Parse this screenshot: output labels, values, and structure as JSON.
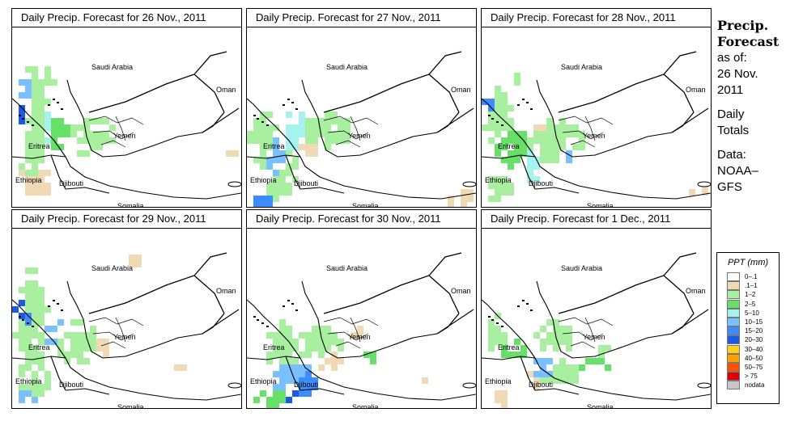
{
  "panels": [
    {
      "title": "Daily Precip. Forecast for  26 Nov., 2011",
      "date": "26 Nov., 2011"
    },
    {
      "title": "Daily Precip. Forecast for  27 Nov., 2011",
      "date": "27 Nov., 2011"
    },
    {
      "title": "Daily Precip. Forecast for  28 Nov., 2011",
      "date": "28 Nov., 2011"
    },
    {
      "title": "Daily Precip. Forecast for  29 Nov., 2011",
      "date": "29 Nov., 2011"
    },
    {
      "title": "Daily Precip. Forecast for  30 Nov., 2011",
      "date": "30 Nov., 2011"
    },
    {
      "title": "Daily Precip. Forecast for  1 Dec., 2011",
      "date": "1 Dec., 2011"
    }
  ],
  "map_labels": {
    "saudi_arabia": "Saudi Arabia",
    "oman": "Oman",
    "yemen": "Yemen",
    "eritrea": "Eritrea",
    "ethiopia": "Ethiopia",
    "djibouti": "Djibouti",
    "somalia": "Somalia"
  },
  "side_info": {
    "title_line1": "Precip.",
    "title_line2": "Forecast",
    "asof_line1": "as of:",
    "asof_line2": "26 Nov.",
    "asof_line3": "2011",
    "totals_line1": "Daily",
    "totals_line2": "Totals",
    "data_line1": "Data:",
    "data_line2": "NOAA–",
    "data_line3": "GFS"
  },
  "legend": {
    "title": "PPT (mm)",
    "items": [
      {
        "label": "0–.1",
        "color": "#ffffff"
      },
      {
        "label": ".1–1",
        "color": "#f0d9b5"
      },
      {
        "label": "1–2",
        "color": "#a8f0a0"
      },
      {
        "label": "2–5",
        "color": "#66e066"
      },
      {
        "label": "5–10",
        "color": "#a6f2ee"
      },
      {
        "label": "10–15",
        "color": "#78c0ff"
      },
      {
        "label": "15–20",
        "color": "#3c8cff"
      },
      {
        "label": "20–30",
        "color": "#1a5ae6"
      },
      {
        "label": "30–40",
        "color": "#ffd020"
      },
      {
        "label": "40–50",
        "color": "#ffa000"
      },
      {
        "label": "50–75",
        "color": "#ff5000"
      },
      {
        "label": "> 75",
        "color": "#e00000"
      },
      {
        "label": "nodata",
        "color": "#c8c8c8"
      }
    ]
  }
}
